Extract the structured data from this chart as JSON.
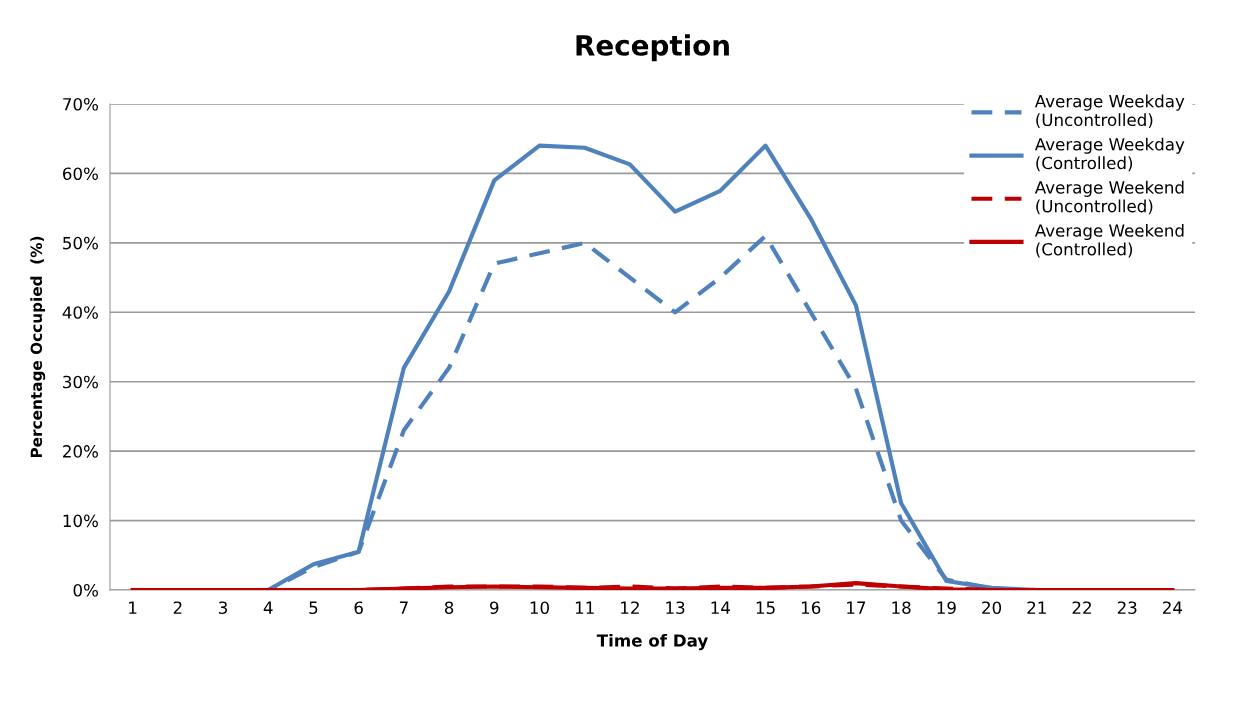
{
  "chart_data": {
    "type": "line",
    "title": "Reception",
    "xlabel": "Time of Day",
    "ylabel": "Percentage Occupied  (%)",
    "categories": [
      "1",
      "2",
      "3",
      "4",
      "5",
      "6",
      "7",
      "8",
      "9",
      "10",
      "11",
      "12",
      "13",
      "14",
      "15",
      "16",
      "17",
      "18",
      "19",
      "20",
      "21",
      "22",
      "23",
      "24"
    ],
    "ylim": [
      0,
      70
    ],
    "yticks": [
      {
        "value": 0,
        "label": "0%"
      },
      {
        "value": 10,
        "label": "10%"
      },
      {
        "value": 20,
        "label": "20%"
      },
      {
        "value": 30,
        "label": "30%"
      },
      {
        "value": 40,
        "label": "40%"
      },
      {
        "value": 50,
        "label": "50%"
      },
      {
        "value": 60,
        "label": "60%"
      },
      {
        "value": 70,
        "label": "70%"
      }
    ],
    "grid": "y",
    "legend": "right",
    "marker": "none",
    "series": [
      {
        "name": "Average Weekday\n(Uncontrolled)",
        "color": "#4f81bd",
        "line_style": "dashed",
        "values": [
          null,
          null,
          0,
          0,
          3.3,
          5.5,
          23,
          32,
          47,
          48.5,
          50,
          45,
          40,
          45,
          51,
          40,
          29,
          10,
          1.5,
          0.2,
          0,
          0,
          null,
          null
        ]
      },
      {
        "name": "Average Weekday\n(Controlled)",
        "color": "#4f81bd",
        "line_style": "solid",
        "values": [
          null,
          null,
          0,
          0,
          3.7,
          5.5,
          32,
          43,
          59,
          64,
          63.7,
          61.3,
          54.5,
          57.5,
          64,
          53.5,
          41,
          12.5,
          1.3,
          0.3,
          0,
          0,
          null,
          null
        ]
      },
      {
        "name": "Average Weekend\n(Uncontrolled)",
        "color": "#c00000",
        "line_style": "dashed",
        "values": [
          0,
          0,
          0,
          0,
          0,
          0,
          0.2,
          0.5,
          0.5,
          0.5,
          0.3,
          0.5,
          0.2,
          0.5,
          0.3,
          0.5,
          0.8,
          0.5,
          0.2,
          0,
          0,
          0,
          0,
          0
        ]
      },
      {
        "name": "Average Weekend\n(Controlled)",
        "color": "#c00000",
        "line_style": "solid",
        "values": [
          0,
          0,
          0,
          0,
          0,
          0,
          0.2,
          0.4,
          0.5,
          0.4,
          0.3,
          0.2,
          0.2,
          0.3,
          0.3,
          0.5,
          1,
          0.5,
          0.1,
          0,
          0,
          0,
          0,
          0
        ]
      }
    ]
  }
}
